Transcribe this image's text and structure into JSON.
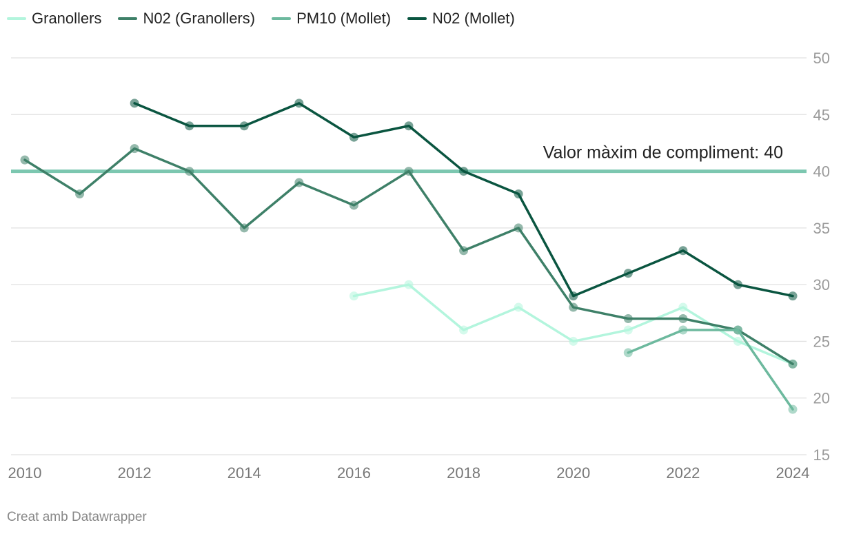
{
  "chart_data": {
    "type": "line",
    "x": [
      2010,
      2011,
      2012,
      2013,
      2014,
      2015,
      2016,
      2017,
      2018,
      2019,
      2020,
      2021,
      2022,
      2023,
      2024
    ],
    "series": [
      {
        "name": "Granollers",
        "color": "#b3f5dd",
        "values": [
          null,
          null,
          null,
          null,
          null,
          null,
          29,
          30,
          26,
          28,
          25,
          26,
          28,
          25,
          23
        ]
      },
      {
        "name": "N02 (Granollers)",
        "color": "#3e8068",
        "values": [
          41,
          38,
          42,
          40,
          35,
          39,
          37,
          40,
          33,
          35,
          28,
          27,
          27,
          26,
          23
        ]
      },
      {
        "name": "PM10 (Mollet)",
        "color": "#6db99e",
        "values": [
          null,
          null,
          null,
          null,
          null,
          null,
          null,
          null,
          null,
          null,
          null,
          24,
          26,
          26,
          19
        ]
      },
      {
        "name": "N02 (Mollet)",
        "color": "#0a5540",
        "values": [
          null,
          null,
          46,
          44,
          44,
          46,
          43,
          44,
          40,
          38,
          29,
          31,
          33,
          30,
          29
        ]
      }
    ],
    "x_ticks": [
      "2010",
      "2012",
      "2014",
      "2016",
      "2018",
      "2020",
      "2022",
      "2024"
    ],
    "y_ticks": [
      "15",
      "20",
      "25",
      "30",
      "35",
      "40",
      "45",
      "50"
    ],
    "ylim": [
      15,
      50
    ],
    "xlim": [
      2010,
      2024
    ],
    "grid": true,
    "legend": "top-left",
    "reference_line": {
      "value": 40,
      "label": "Valor màxim de compliment: 40",
      "color": "#7cc7b0"
    }
  },
  "footer": {
    "credit": "Creat amb Datawrapper"
  }
}
